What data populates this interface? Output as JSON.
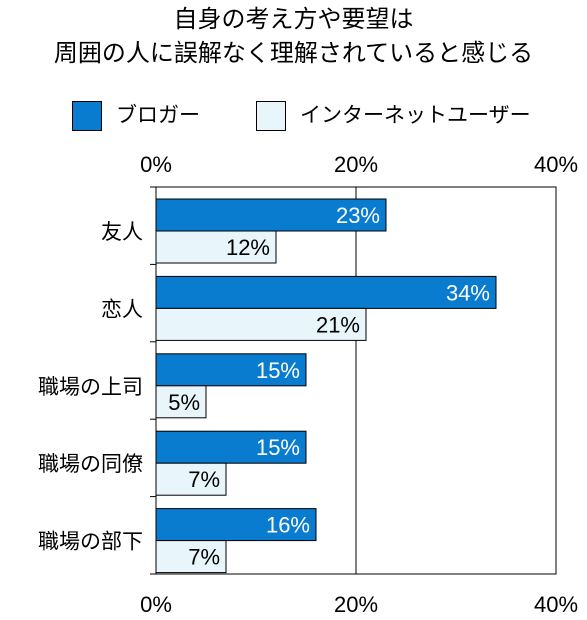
{
  "title_line1": "自身の考え方や要望は",
  "title_line2": "周囲の人に誤解なく理解されていると感じる",
  "legend": [
    {
      "label": "ブロガー",
      "color": "#0A7CD0"
    },
    {
      "label": "インターネットユーザー",
      "color": "#E8F6FC"
    }
  ],
  "chart_data": {
    "type": "bar",
    "orientation": "horizontal",
    "title": "自身の考え方や要望は 周囲の人に誤解なく理解されていると感じる",
    "categories": [
      "友人",
      "恋人",
      "職場の上司",
      "職場の同僚",
      "職場の部下"
    ],
    "series": [
      {
        "name": "ブロガー",
        "values": [
          23,
          34,
          15,
          15,
          16
        ],
        "labels": [
          "23%",
          "34%",
          "15%",
          "15%",
          "16%"
        ],
        "color": "#0A7CD0",
        "label_color": "#ffffff"
      },
      {
        "name": "インターネットユーザー",
        "values": [
          12,
          21,
          5,
          7,
          7
        ],
        "labels": [
          "12%",
          "21%",
          "5%",
          "7%",
          "7%"
        ],
        "color": "#E8F6FC",
        "label_color": "#000000"
      }
    ],
    "xlim": [
      0,
      40
    ],
    "ticks": [
      0,
      20,
      40
    ],
    "tick_labels": [
      "0%",
      "20%",
      "40%"
    ],
    "axis_position": "top-and-bottom",
    "grid": true,
    "legend_position": "top"
  }
}
